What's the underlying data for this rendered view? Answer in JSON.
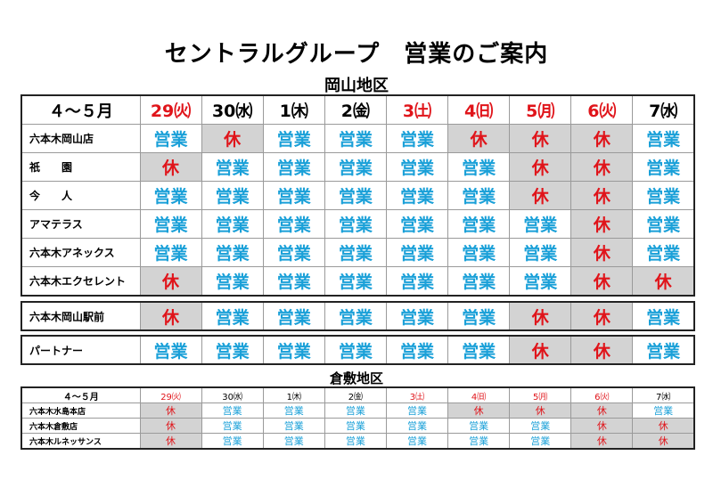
{
  "title": "セントラルグループ　営業のご案内",
  "okayama": {
    "section_title": "岡山地区",
    "header_label": "４～５月",
    "dates": [
      {
        "label": "29㈫",
        "red": true
      },
      {
        "label": "30㈬",
        "red": false
      },
      {
        "label": "1㈭",
        "red": false
      },
      {
        "label": "2㈮",
        "red": false
      },
      {
        "label": "3㈯",
        "red": true
      },
      {
        "label": "4㈰",
        "red": true
      },
      {
        "label": "5㈪",
        "red": true
      },
      {
        "label": "6㈫",
        "red": true
      },
      {
        "label": "7㈬",
        "red": false
      }
    ],
    "rows": [
      {
        "name": "六本木岡山店",
        "cells": [
          "営業",
          "休",
          "営業",
          "営業",
          "営業",
          "休",
          "休",
          "休",
          "営業"
        ]
      },
      {
        "name": "祇　　園",
        "cells": [
          "休",
          "営業",
          "営業",
          "営業",
          "営業",
          "営業",
          "休",
          "休",
          "営業"
        ]
      },
      {
        "name": "今　　人",
        "cells": [
          "営業",
          "営業",
          "営業",
          "営業",
          "営業",
          "営業",
          "休",
          "休",
          "営業"
        ]
      },
      {
        "name": "アマテラス",
        "cells": [
          "営業",
          "営業",
          "営業",
          "営業",
          "営業",
          "営業",
          "営業",
          "休",
          "営業"
        ]
      },
      {
        "name": "六本木アネックス",
        "cells": [
          "営業",
          "営業",
          "営業",
          "営業",
          "営業",
          "営業",
          "営業",
          "休",
          "営業"
        ]
      },
      {
        "name": "六本木エクセレント",
        "cells": [
          "休",
          "営業",
          "営業",
          "営業",
          "営業",
          "営業",
          "営業",
          "休",
          "休"
        ]
      }
    ],
    "station": {
      "name": "六本木岡山駅前",
      "cells": [
        "休",
        "営業",
        "営業",
        "営業",
        "営業",
        "営業",
        "休",
        "休",
        "営業"
      ]
    },
    "partner": {
      "name": "パートナー",
      "cells": [
        "営業",
        "営業",
        "営業",
        "営業",
        "営業",
        "営業",
        "休",
        "休",
        "営業"
      ]
    }
  },
  "kurashiki": {
    "section_title": "倉敷地区",
    "header_label": "４～５月",
    "dates": [
      {
        "label": "29㈫",
        "red": true
      },
      {
        "label": "30㈬",
        "red": false
      },
      {
        "label": "1㈭",
        "red": false
      },
      {
        "label": "2㈮",
        "red": false
      },
      {
        "label": "3㈯",
        "red": true
      },
      {
        "label": "4㈰",
        "red": true
      },
      {
        "label": "5㈪",
        "red": true
      },
      {
        "label": "6㈫",
        "red": true
      },
      {
        "label": "7㈬",
        "red": false
      }
    ],
    "rows": [
      {
        "name": "六本木水島本店",
        "cells": [
          "休",
          "営業",
          "営業",
          "営業",
          "営業",
          "休",
          "休",
          "休",
          "営業"
        ]
      },
      {
        "name": "六本木倉敷店",
        "cells": [
          "休",
          "営業",
          "営業",
          "営業",
          "営業",
          "営業",
          "営業",
          "休",
          "休"
        ]
      },
      {
        "name": "六本木ルネッサンス",
        "cells": [
          "休",
          "営業",
          "営業",
          "営業",
          "営業",
          "営業",
          "営業",
          "休",
          "休"
        ]
      }
    ]
  },
  "colors": {
    "open": "#1aa0d8",
    "closed": "#e0141a",
    "closed_bg": "#d3d3d3",
    "header_red": "#e0141a"
  }
}
